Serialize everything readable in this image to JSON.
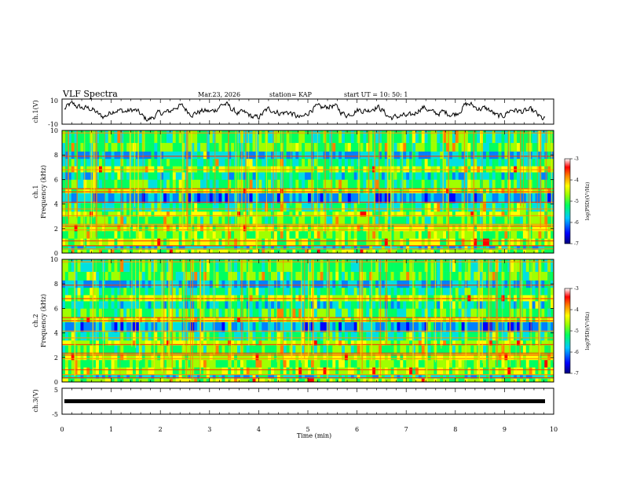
{
  "header": {
    "title": "VLF Spectra",
    "date": "Mar.23, 2026",
    "station": "station= KAP",
    "start": "start  UT =   10: 50: 1"
  },
  "chart_data": [
    {
      "id": "ch1-waveform",
      "type": "line",
      "ylabel": "ch.1(V)",
      "ylim": [
        -10,
        10
      ],
      "ytick_labels": [
        "10",
        "-10"
      ],
      "xlim": [
        0,
        10
      ],
      "description_value": "noisy waveform oscillating roughly between -6 and 6 V"
    },
    {
      "id": "ch1-spectrogram",
      "type": "heatmap",
      "ylabel": "ch.1",
      "ylabel2": "Frequency  (kHz)",
      "ylim": [
        0,
        10
      ],
      "ytick_labels": [
        "0",
        "2",
        "4",
        "6",
        "8",
        "10"
      ],
      "xlim": [
        0,
        10
      ],
      "colorbar": {
        "label": "log(PSD)(V²/Hz)",
        "range": [
          -7,
          -3
        ],
        "tick_labels": [
          "-3",
          "-4",
          "-5",
          "-6",
          "-7"
        ]
      }
    },
    {
      "id": "ch2-spectrogram",
      "type": "heatmap",
      "ylabel": "ch.2",
      "ylabel2": "Frequency  (kHz)",
      "ylim": [
        0,
        10
      ],
      "ytick_labels": [
        "0",
        "2",
        "4",
        "6",
        "8",
        "10"
      ],
      "xlim": [
        0,
        10
      ],
      "colorbar": {
        "label": "log(PSD)(V²/Hz)",
        "range": [
          -7,
          -3
        ],
        "tick_labels": [
          "-3",
          "-4",
          "-5",
          "-6",
          "-7"
        ]
      }
    },
    {
      "id": "ch3-waveform",
      "type": "line",
      "ylabel": "ch.3(V)",
      "ylim": [
        -5,
        5
      ],
      "ytick_labels": [
        "5",
        "-5"
      ],
      "xlim": [
        0,
        10
      ],
      "level": 0
    }
  ],
  "xaxis": {
    "label": "Time  (min)",
    "tick_labels": [
      "0",
      "1",
      "2",
      "3",
      "4",
      "5",
      "6",
      "7",
      "8",
      "9",
      "10"
    ]
  },
  "palette": [
    "#00007a",
    "#0000ff",
    "#0080ff",
    "#00e0e0",
    "#00ff60",
    "#a0ff00",
    "#ffff00",
    "#ff8000",
    "#ff0000",
    "#ffc8c8"
  ]
}
